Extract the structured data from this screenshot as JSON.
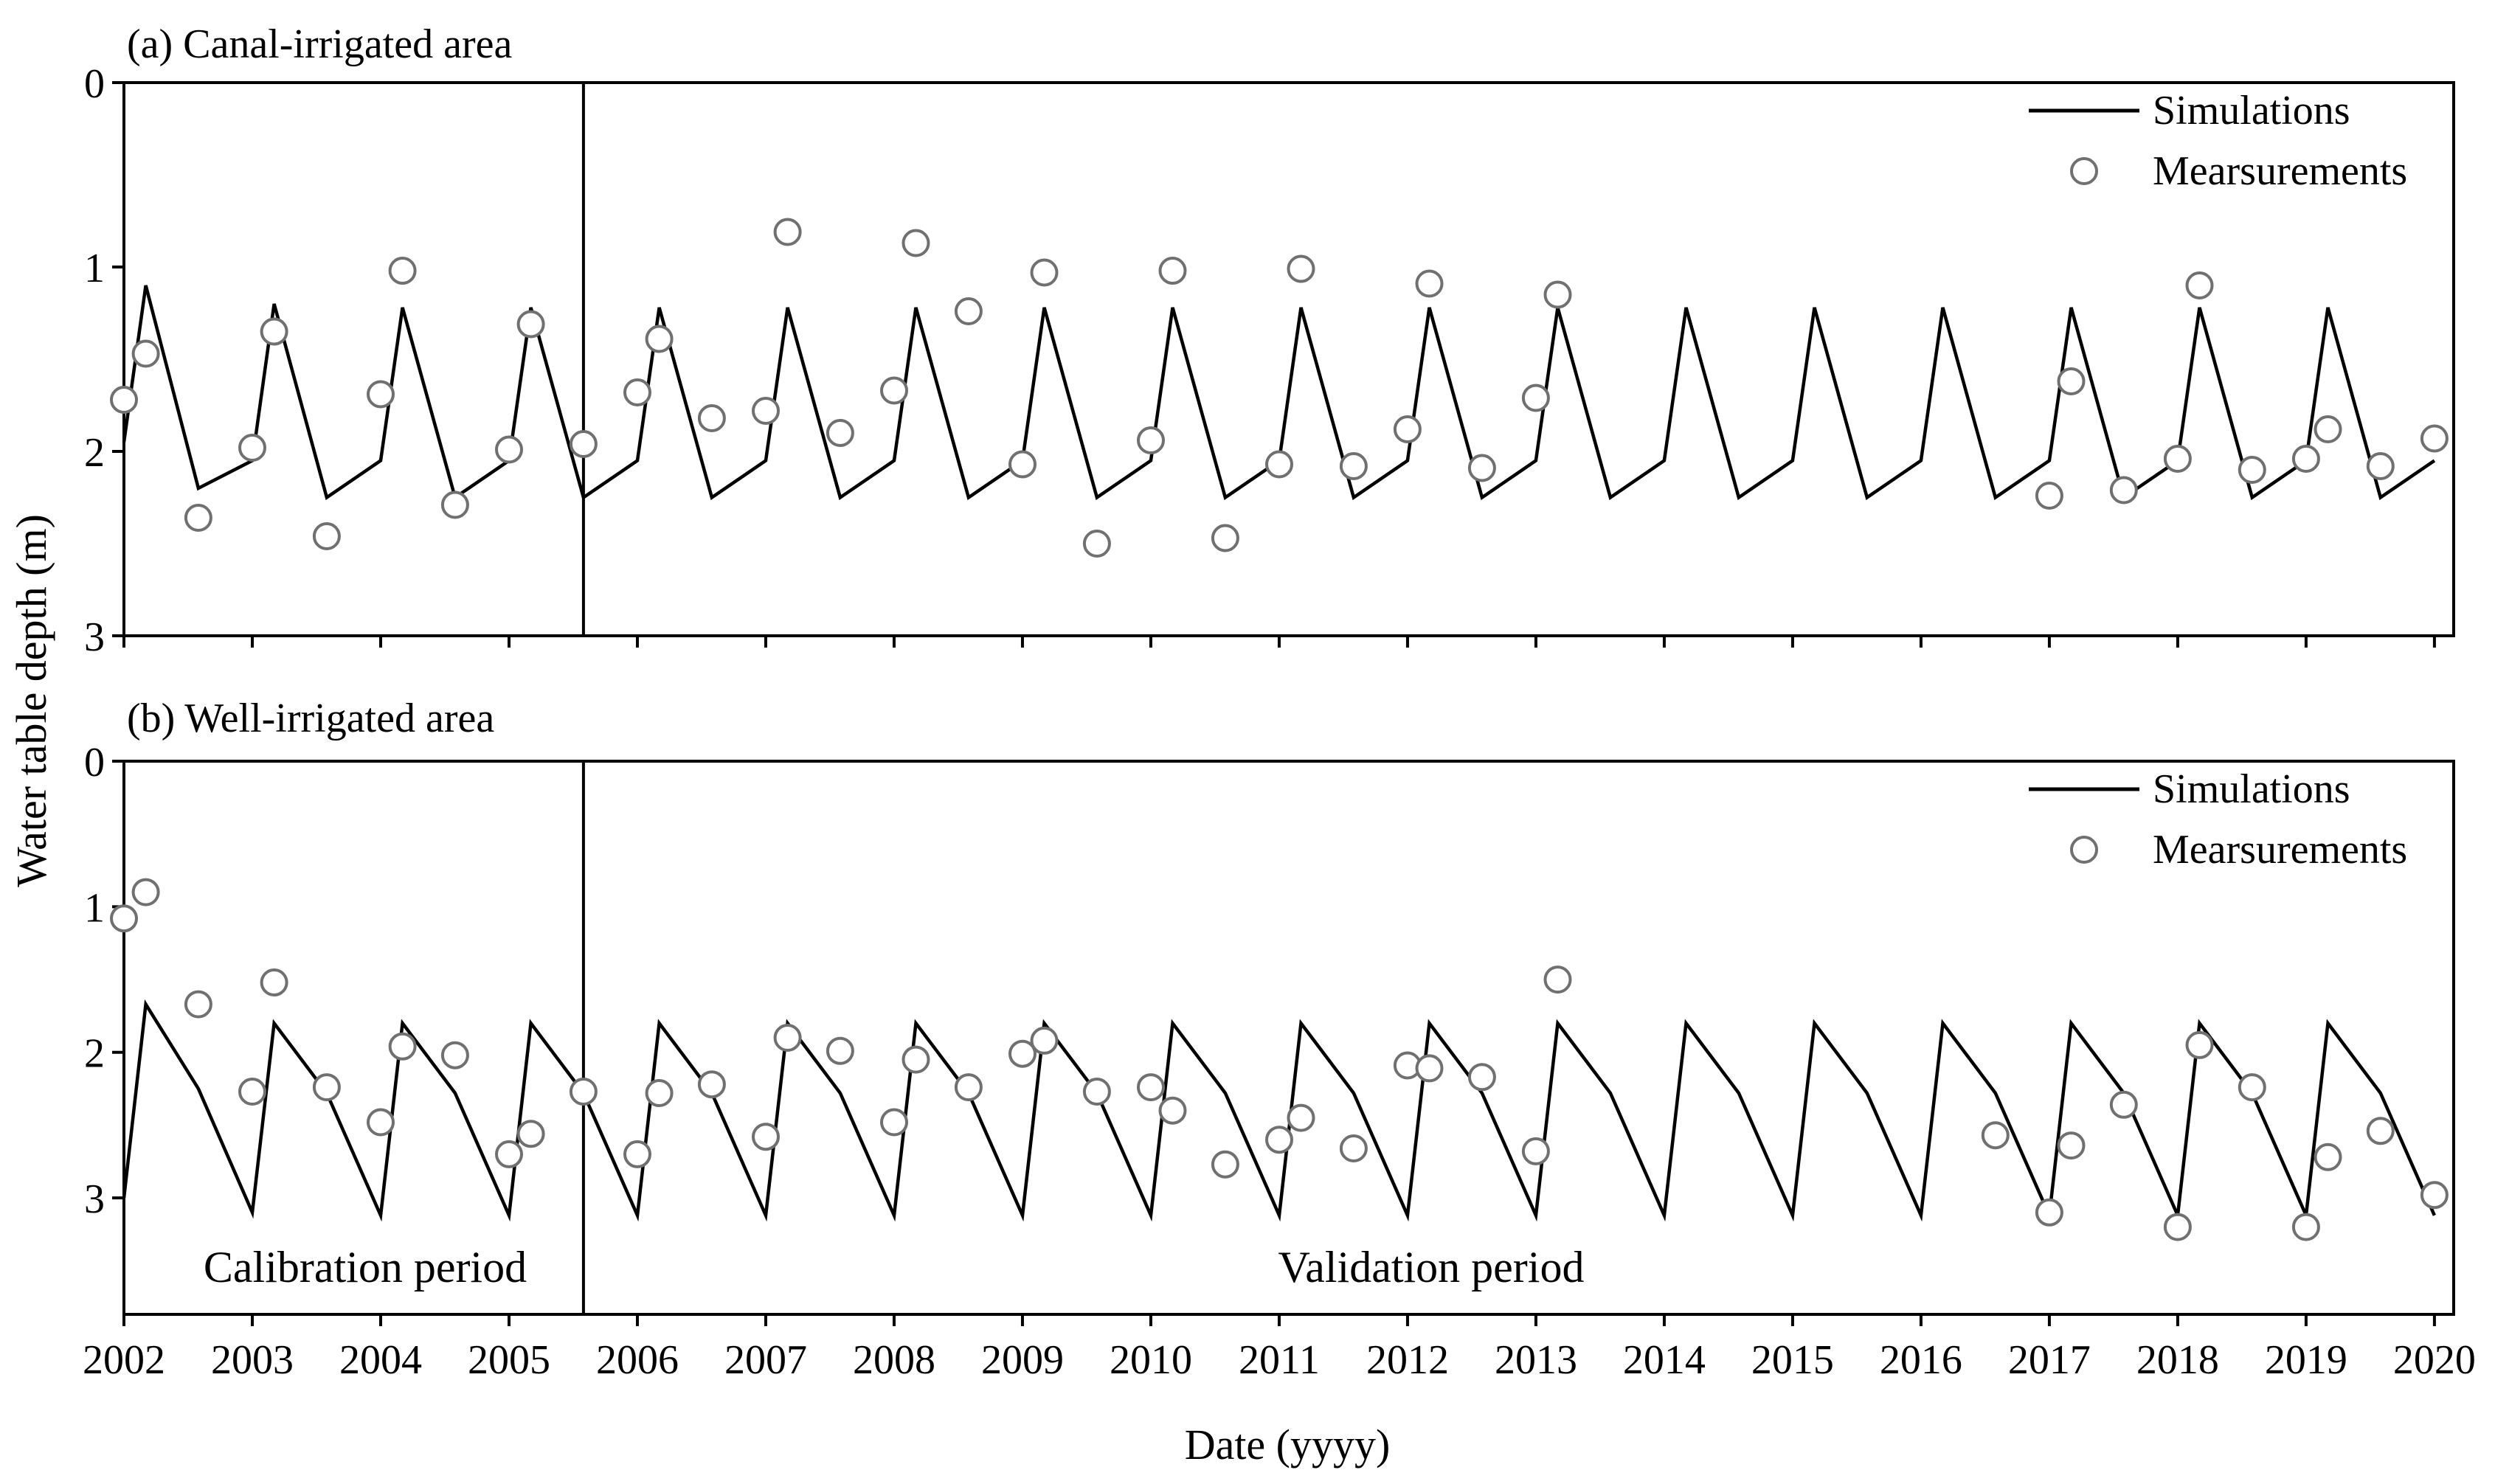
{
  "figure": {
    "xlabel": "Date (yyyy)",
    "ylabel": "Water table depth (m)",
    "calibration_label": "Calibration period",
    "validation_label": "Validation period"
  },
  "chart_data": [
    {
      "type": "line",
      "title": "(a) Canal-irrigated area",
      "xlabel": "Date (yyyy)",
      "ylabel": "Water table depth (m)",
      "xlim": [
        2002,
        2020.15
      ],
      "ylim": [
        0,
        3
      ],
      "y_inverted": true,
      "xticks": [
        2002,
        2003,
        2004,
        2005,
        2006,
        2007,
        2008,
        2009,
        2010,
        2011,
        2012,
        2013,
        2014,
        2015,
        2016,
        2017,
        2018,
        2019,
        2020
      ],
      "yticks": [
        0,
        1,
        2,
        3
      ],
      "calibration_end": 2005.58,
      "legend": {
        "position": "top-right",
        "entries": [
          "Simulations",
          "Mearsurements"
        ]
      },
      "series": [
        {
          "name": "Simulations",
          "style": "line",
          "color": "#000000",
          "points": [
            [
              2002.0,
              1.95
            ],
            [
              2002.17,
              1.1
            ],
            [
              2002.58,
              2.2
            ],
            [
              2003.0,
              2.05
            ],
            [
              2003.17,
              1.2
            ],
            [
              2003.58,
              2.25
            ],
            [
              2004.0,
              2.05
            ],
            [
              2004.17,
              1.22
            ],
            [
              2004.58,
              2.25
            ],
            [
              2005.0,
              2.05
            ],
            [
              2005.17,
              1.22
            ],
            [
              2005.58,
              2.25
            ],
            [
              2006.0,
              2.05
            ],
            [
              2006.17,
              1.22
            ],
            [
              2006.58,
              2.25
            ],
            [
              2007.0,
              2.05
            ],
            [
              2007.17,
              1.22
            ],
            [
              2007.58,
              2.25
            ],
            [
              2008.0,
              2.05
            ],
            [
              2008.17,
              1.22
            ],
            [
              2008.58,
              2.25
            ],
            [
              2009.0,
              2.05
            ],
            [
              2009.17,
              1.22
            ],
            [
              2009.58,
              2.25
            ],
            [
              2010.0,
              2.05
            ],
            [
              2010.17,
              1.22
            ],
            [
              2010.58,
              2.25
            ],
            [
              2011.0,
              2.05
            ],
            [
              2011.17,
              1.22
            ],
            [
              2011.58,
              2.25
            ],
            [
              2012.0,
              2.05
            ],
            [
              2012.17,
              1.22
            ],
            [
              2012.58,
              2.25
            ],
            [
              2013.0,
              2.05
            ],
            [
              2013.17,
              1.22
            ],
            [
              2013.58,
              2.25
            ],
            [
              2014.0,
              2.05
            ],
            [
              2014.17,
              1.22
            ],
            [
              2014.58,
              2.25
            ],
            [
              2015.0,
              2.05
            ],
            [
              2015.17,
              1.22
            ],
            [
              2015.58,
              2.25
            ],
            [
              2016.0,
              2.05
            ],
            [
              2016.17,
              1.22
            ],
            [
              2016.58,
              2.25
            ],
            [
              2017.0,
              2.05
            ],
            [
              2017.17,
              1.22
            ],
            [
              2017.58,
              2.25
            ],
            [
              2018.0,
              2.05
            ],
            [
              2018.17,
              1.22
            ],
            [
              2018.58,
              2.25
            ],
            [
              2019.0,
              2.05
            ],
            [
              2019.17,
              1.22
            ],
            [
              2019.58,
              2.25
            ],
            [
              2020.0,
              2.05
            ]
          ]
        },
        {
          "name": "Mearsurements",
          "style": "marker",
          "color": "#707070",
          "points": [
            [
              2002.0,
              1.72
            ],
            [
              2002.17,
              1.47
            ],
            [
              2002.58,
              2.36
            ],
            [
              2003.0,
              1.98
            ],
            [
              2003.17,
              1.35
            ],
            [
              2003.58,
              2.46
            ],
            [
              2004.0,
              1.69
            ],
            [
              2004.17,
              1.02
            ],
            [
              2004.58,
              2.29
            ],
            [
              2005.0,
              1.99
            ],
            [
              2005.17,
              1.31
            ],
            [
              2005.58,
              1.96
            ],
            [
              2006.0,
              1.68
            ],
            [
              2006.17,
              1.39
            ],
            [
              2006.58,
              1.82
            ],
            [
              2007.0,
              1.78
            ],
            [
              2007.17,
              0.81
            ],
            [
              2007.58,
              1.9
            ],
            [
              2008.0,
              1.67
            ],
            [
              2008.17,
              0.87
            ],
            [
              2008.58,
              1.24
            ],
            [
              2009.0,
              2.07
            ],
            [
              2009.17,
              1.03
            ],
            [
              2009.58,
              2.5
            ],
            [
              2010.0,
              1.94
            ],
            [
              2010.17,
              1.02
            ],
            [
              2010.58,
              2.47
            ],
            [
              2011.0,
              2.07
            ],
            [
              2011.17,
              1.01
            ],
            [
              2011.58,
              2.08
            ],
            [
              2012.0,
              1.88
            ],
            [
              2012.17,
              1.09
            ],
            [
              2012.58,
              2.09
            ],
            [
              2013.0,
              1.71
            ],
            [
              2013.17,
              1.15
            ],
            [
              2017.0,
              2.24
            ],
            [
              2017.17,
              1.62
            ],
            [
              2017.58,
              2.21
            ],
            [
              2018.0,
              2.04
            ],
            [
              2018.17,
              1.1
            ],
            [
              2018.58,
              2.1
            ],
            [
              2019.0,
              2.04
            ],
            [
              2019.17,
              1.88
            ],
            [
              2019.58,
              2.08
            ],
            [
              2020.0,
              1.93
            ]
          ]
        }
      ]
    },
    {
      "type": "line",
      "title": "(b) Well-irrigated area",
      "xlabel": "Date (yyyy)",
      "ylabel": "Water table depth (m)",
      "xlim": [
        2002,
        2020.15
      ],
      "ylim": [
        0,
        3.8
      ],
      "y_inverted": true,
      "xticks": [
        2002,
        2003,
        2004,
        2005,
        2006,
        2007,
        2008,
        2009,
        2010,
        2011,
        2012,
        2013,
        2014,
        2015,
        2016,
        2017,
        2018,
        2019,
        2020
      ],
      "yticks": [
        0,
        1,
        2,
        3
      ],
      "calibration_end": 2005.58,
      "legend": {
        "position": "top-right",
        "entries": [
          "Simulations",
          "Mearsurements"
        ]
      },
      "series": [
        {
          "name": "Simulations",
          "style": "line",
          "color": "#000000",
          "points": [
            [
              2002.0,
              3.0
            ],
            [
              2002.17,
              1.67
            ],
            [
              2002.58,
              2.25
            ],
            [
              2003.0,
              3.1
            ],
            [
              2003.17,
              1.8
            ],
            [
              2003.58,
              2.28
            ],
            [
              2004.0,
              3.12
            ],
            [
              2004.17,
              1.8
            ],
            [
              2004.58,
              2.28
            ],
            [
              2005.0,
              3.12
            ],
            [
              2005.17,
              1.8
            ],
            [
              2005.58,
              2.28
            ],
            [
              2006.0,
              3.12
            ],
            [
              2006.17,
              1.8
            ],
            [
              2006.58,
              2.28
            ],
            [
              2007.0,
              3.12
            ],
            [
              2007.17,
              1.8
            ],
            [
              2007.58,
              2.28
            ],
            [
              2008.0,
              3.12
            ],
            [
              2008.17,
              1.8
            ],
            [
              2008.58,
              2.28
            ],
            [
              2009.0,
              3.12
            ],
            [
              2009.17,
              1.8
            ],
            [
              2009.58,
              2.28
            ],
            [
              2010.0,
              3.12
            ],
            [
              2010.17,
              1.8
            ],
            [
              2010.58,
              2.28
            ],
            [
              2011.0,
              3.12
            ],
            [
              2011.17,
              1.8
            ],
            [
              2011.58,
              2.28
            ],
            [
              2012.0,
              3.12
            ],
            [
              2012.17,
              1.8
            ],
            [
              2012.58,
              2.28
            ],
            [
              2013.0,
              3.12
            ],
            [
              2013.17,
              1.8
            ],
            [
              2013.58,
              2.28
            ],
            [
              2014.0,
              3.12
            ],
            [
              2014.17,
              1.8
            ],
            [
              2014.58,
              2.28
            ],
            [
              2015.0,
              3.12
            ],
            [
              2015.17,
              1.8
            ],
            [
              2015.58,
              2.28
            ],
            [
              2016.0,
              3.12
            ],
            [
              2016.17,
              1.8
            ],
            [
              2016.58,
              2.28
            ],
            [
              2017.0,
              3.12
            ],
            [
              2017.17,
              1.8
            ],
            [
              2017.58,
              2.28
            ],
            [
              2018.0,
              3.12
            ],
            [
              2018.17,
              1.8
            ],
            [
              2018.58,
              2.28
            ],
            [
              2019.0,
              3.12
            ],
            [
              2019.17,
              1.8
            ],
            [
              2019.58,
              2.28
            ],
            [
              2020.0,
              3.12
            ]
          ]
        },
        {
          "name": "Mearsurements",
          "style": "marker",
          "color": "#707070",
          "points": [
            [
              2002.0,
              1.08
            ],
            [
              2002.17,
              0.9
            ],
            [
              2002.58,
              1.67
            ],
            [
              2003.0,
              2.27
            ],
            [
              2003.17,
              1.52
            ],
            [
              2003.58,
              2.24
            ],
            [
              2004.0,
              2.48
            ],
            [
              2004.17,
              1.96
            ],
            [
              2004.58,
              2.02
            ],
            [
              2005.0,
              2.7
            ],
            [
              2005.17,
              2.56
            ],
            [
              2005.58,
              2.27
            ],
            [
              2006.0,
              2.7
            ],
            [
              2006.17,
              2.28
            ],
            [
              2006.58,
              2.22
            ],
            [
              2007.0,
              2.58
            ],
            [
              2007.17,
              1.9
            ],
            [
              2007.58,
              1.99
            ],
            [
              2008.0,
              2.48
            ],
            [
              2008.17,
              2.05
            ],
            [
              2008.58,
              2.24
            ],
            [
              2009.0,
              2.01
            ],
            [
              2009.17,
              1.92
            ],
            [
              2009.58,
              2.27
            ],
            [
              2010.0,
              2.24
            ],
            [
              2010.17,
              2.4
            ],
            [
              2010.58,
              2.77
            ],
            [
              2011.0,
              2.6
            ],
            [
              2011.17,
              2.45
            ],
            [
              2011.58,
              2.66
            ],
            [
              2012.0,
              2.09
            ],
            [
              2012.17,
              2.11
            ],
            [
              2012.58,
              2.17
            ],
            [
              2013.0,
              2.68
            ],
            [
              2013.17,
              1.5
            ],
            [
              2016.58,
              2.57
            ],
            [
              2017.0,
              3.1
            ],
            [
              2017.17,
              2.64
            ],
            [
              2017.58,
              2.36
            ],
            [
              2018.0,
              3.2
            ],
            [
              2018.17,
              1.95
            ],
            [
              2018.58,
              2.24
            ],
            [
              2019.0,
              3.2
            ],
            [
              2019.17,
              2.72
            ],
            [
              2019.58,
              2.54
            ],
            [
              2020.0,
              2.98
            ]
          ]
        }
      ]
    }
  ]
}
